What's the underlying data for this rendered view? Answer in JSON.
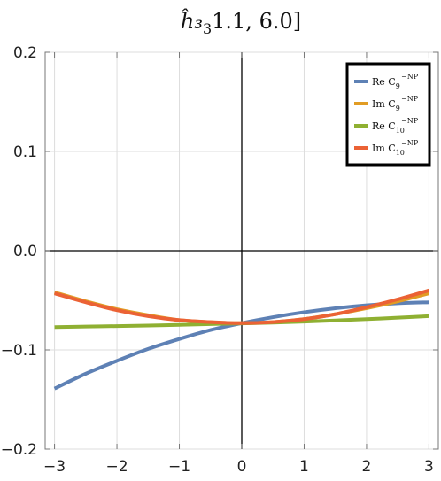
{
  "chart_data": {
    "type": "line",
    "title": "ĥ₃[1.1, 6.0]",
    "xlim": [
      -3.15,
      3.15
    ],
    "ylim": [
      -0.2,
      0.2
    ],
    "xticks": [
      -3,
      -2,
      -1,
      0,
      1,
      2,
      3
    ],
    "xtick_labels": [
      "−3",
      "−2",
      "−1",
      "0",
      "1",
      "2",
      "3"
    ],
    "yticks": [
      -0.2,
      -0.1,
      0.0,
      0.1,
      0.2
    ],
    "ytick_labels": [
      "−0.2",
      "−0.1",
      "0.0",
      "0.1",
      "0.2"
    ],
    "grid": true,
    "legend_position": "top-right",
    "x": [
      -3,
      -2.5,
      -2,
      -1.5,
      -1,
      -0.5,
      0,
      0.5,
      1,
      1.5,
      2,
      2.5,
      3
    ],
    "series": [
      {
        "name": "Re C9 −NP",
        "legend": {
          "prefix": "Re C",
          "sub": "9",
          "sup": "−NP"
        },
        "color": "#5e81b5",
        "values": [
          -0.139,
          -0.124,
          -0.111,
          -0.099,
          -0.089,
          -0.08,
          -0.073,
          -0.067,
          -0.062,
          -0.058,
          -0.055,
          -0.053,
          -0.052
        ]
      },
      {
        "name": "Im C9 −NP",
        "legend": {
          "prefix": "Im C",
          "sub": "9",
          "sup": "−NP"
        },
        "color": "#e19c24",
        "values": [
          -0.042,
          -0.051,
          -0.059,
          -0.065,
          -0.07,
          -0.072,
          -0.073,
          -0.072,
          -0.069,
          -0.064,
          -0.058,
          -0.051,
          -0.043
        ]
      },
      {
        "name": "Re C10 −NP",
        "legend": {
          "prefix": "Re C",
          "sub": "10",
          "sup": "−NP"
        },
        "color": "#8fb032",
        "values": [
          -0.077,
          -0.0765,
          -0.076,
          -0.0755,
          -0.0748,
          -0.074,
          -0.0733,
          -0.0725,
          -0.0715,
          -0.0703,
          -0.069,
          -0.0675,
          -0.066
        ]
      },
      {
        "name": "Im C10 −NP",
        "legend": {
          "prefix": "Im C",
          "sub": "10",
          "sup": "−NP"
        },
        "color": "#eb6235",
        "values": [
          -0.043,
          -0.052,
          -0.06,
          -0.066,
          -0.07,
          -0.072,
          -0.073,
          -0.072,
          -0.069,
          -0.064,
          -0.057,
          -0.049,
          -0.04
        ]
      }
    ]
  }
}
